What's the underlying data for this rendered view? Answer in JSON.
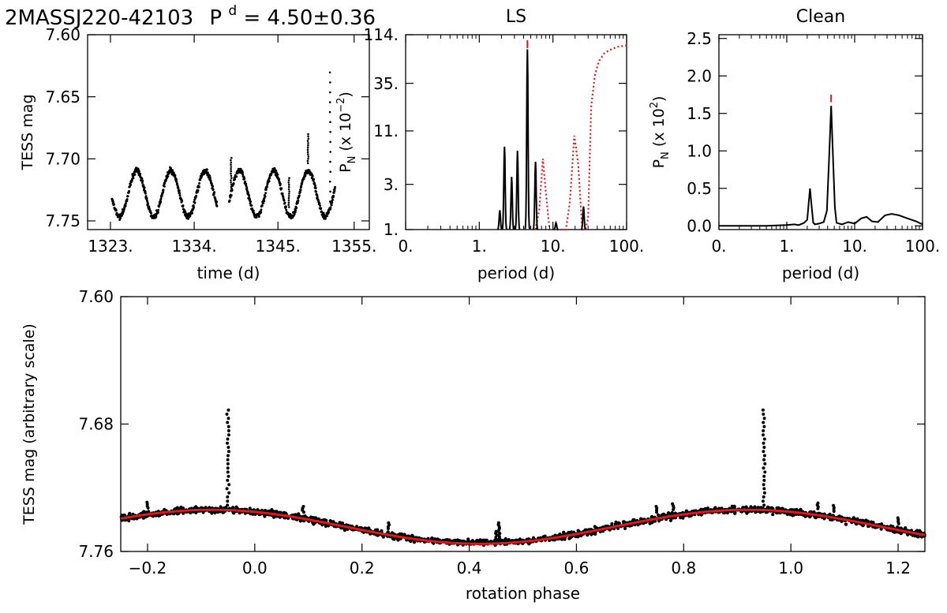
{
  "header": {
    "star": "2MASSJ220-42103",
    "period_sym": "P",
    "period_sup": "d",
    "period_value": "= 4.50±0.36"
  },
  "chart_data": [
    {
      "id": "lc",
      "type": "scatter",
      "title": "",
      "xlabel": "time (d)",
      "ylabel": "TESS mag",
      "xlim": [
        1320,
        1357
      ],
      "ylim": [
        7.757,
        7.6
      ],
      "xticks": [
        1323,
        1334,
        1345,
        1355
      ],
      "xtick_labels": [
        "1323.",
        "1334.",
        "1345.",
        "1355."
      ],
      "yticks": [
        7.6,
        7.65,
        7.7,
        7.75
      ],
      "ytick_labels": [
        "7.60",
        "7.65",
        "7.70",
        "7.75"
      ],
      "segments": [
        [
          1323.2,
          1337.0
        ],
        [
          1338.6,
          1352.5
        ]
      ],
      "model": {
        "period_d": 4.5,
        "mean_mag": 7.728,
        "amplitude_mag": 0.0185,
        "t0": 1326.45
      },
      "flare_times": [
        1338.8,
        1346.4,
        1348.9,
        1351.8
      ]
    },
    {
      "id": "ls",
      "type": "line",
      "title": "LS",
      "xlabel": "period (d)",
      "ylabel": "P_N (x 10^-2)",
      "xscale": "log",
      "xlim": [
        0.1,
        100
      ],
      "xticks": [
        0.1,
        1,
        10,
        100
      ],
      "xtick_labels": [
        "0.",
        "1.",
        "10.",
        "100."
      ],
      "yscale": "log",
      "ylim": [
        1,
        114
      ],
      "yticks": [
        1,
        3,
        11,
        35,
        114
      ],
      "ytick_labels": [
        "1.",
        "3.",
        "11.",
        "35.",
        "114."
      ],
      "series": [
        {
          "name": "periodogram",
          "style": "solid",
          "color": "#000000",
          "peaks": [
            [
              1.9,
              1.6
            ],
            [
              2.2,
              7.5
            ],
            [
              2.75,
              3.6
            ],
            [
              3.3,
              6.8
            ],
            [
              4.5,
              80
            ],
            [
              5.8,
              5.2
            ],
            [
              11.0,
              1.18
            ],
            [
              26.0,
              1.75
            ]
          ]
        },
        {
          "name": "window function",
          "style": "dotted",
          "color": "#e8141c",
          "x": [
            5.8,
            6.5,
            7.3,
            8.0,
            9.0,
            10.0,
            11.2,
            13.0,
            15.0,
            17.0,
            19.5,
            22.0,
            25.0,
            27.5,
            30.0,
            33.0,
            37.0,
            42.0,
            50.0,
            60.0,
            75.0,
            100.0
          ],
          "y": [
            1.0,
            1.6,
            5.6,
            2.5,
            1.0,
            1.0,
            1.0,
            1.0,
            1.0,
            2.0,
            9.8,
            5.0,
            1.0,
            1.0,
            1.3,
            20.0,
            42.0,
            60.0,
            73.0,
            79.0,
            85.0,
            88.0
          ]
        }
      ],
      "peak_marker": 4.5
    },
    {
      "id": "clean",
      "type": "line",
      "title": "Clean",
      "xlabel": "period (d)",
      "ylabel": "P_N (x 10^2)",
      "xscale": "log",
      "xlim": [
        0.1,
        100
      ],
      "xticks": [
        0.1,
        1,
        10,
        100
      ],
      "xtick_labels": [
        "0.",
        "1.",
        "10.",
        "100."
      ],
      "ylim": [
        -0.05,
        2.55
      ],
      "yticks": [
        0.0,
        0.5,
        1.0,
        1.5,
        2.0,
        2.5
      ],
      "ytick_labels": [
        "0.0",
        "0.5",
        "1.0",
        "1.5",
        "2.0",
        "2.5"
      ],
      "series": [
        {
          "name": "clean spectrum",
          "style": "solid",
          "color": "#000000",
          "x": [
            0.1,
            0.5,
            1.0,
            1.3,
            1.5,
            1.8,
            2.0,
            2.1,
            2.2,
            2.3,
            2.45,
            2.6,
            3.0,
            3.5,
            3.9,
            4.2,
            4.5,
            4.8,
            5.1,
            5.4,
            6.5,
            8.0,
            10.0,
            12.5,
            15.0,
            18.0,
            22.0,
            28.0,
            35.0,
            45.0,
            60.0,
            80.0,
            100.0
          ],
          "y": [
            0.0,
            0.0,
            0.01,
            0.02,
            0.01,
            0.04,
            0.08,
            0.3,
            0.5,
            0.3,
            0.04,
            0.02,
            0.03,
            0.05,
            0.2,
            0.9,
            1.6,
            0.9,
            0.25,
            0.04,
            0.02,
            0.05,
            0.03,
            0.1,
            0.12,
            0.06,
            0.05,
            0.14,
            0.16,
            0.14,
            0.1,
            0.06,
            0.02
          ]
        }
      ],
      "peak_marker": 4.5
    },
    {
      "id": "phase",
      "type": "scatter",
      "title": "",
      "xlabel": "rotation phase",
      "ylabel": "TESS mag (arbitrary scale)",
      "xlim": [
        -0.25,
        1.25
      ],
      "xticks": [
        -0.2,
        0.0,
        0.2,
        0.4,
        0.6,
        0.8,
        1.0,
        1.2
      ],
      "xtick_labels": [
        "−0.2",
        "0.0",
        "0.2",
        "0.4",
        "0.6",
        "0.8",
        "1.0",
        "1.2"
      ],
      "ylim": [
        7.76,
        7.6
      ],
      "yticks": [
        7.6,
        7.68,
        7.76
      ],
      "ytick_labels": [
        "7.60",
        "7.68",
        "7.76"
      ],
      "fit": {
        "color": "#e8141c",
        "mean_mag": 7.7445,
        "amplitude_mag": 0.0107,
        "phase_of_min": 0.42
      },
      "flare_phases": [
        -0.05,
        0.95,
        0.455
      ],
      "spike_phases": [
        -0.2,
        0.09,
        0.25,
        0.45,
        0.75,
        0.78,
        1.05,
        1.08,
        1.2
      ]
    }
  ]
}
